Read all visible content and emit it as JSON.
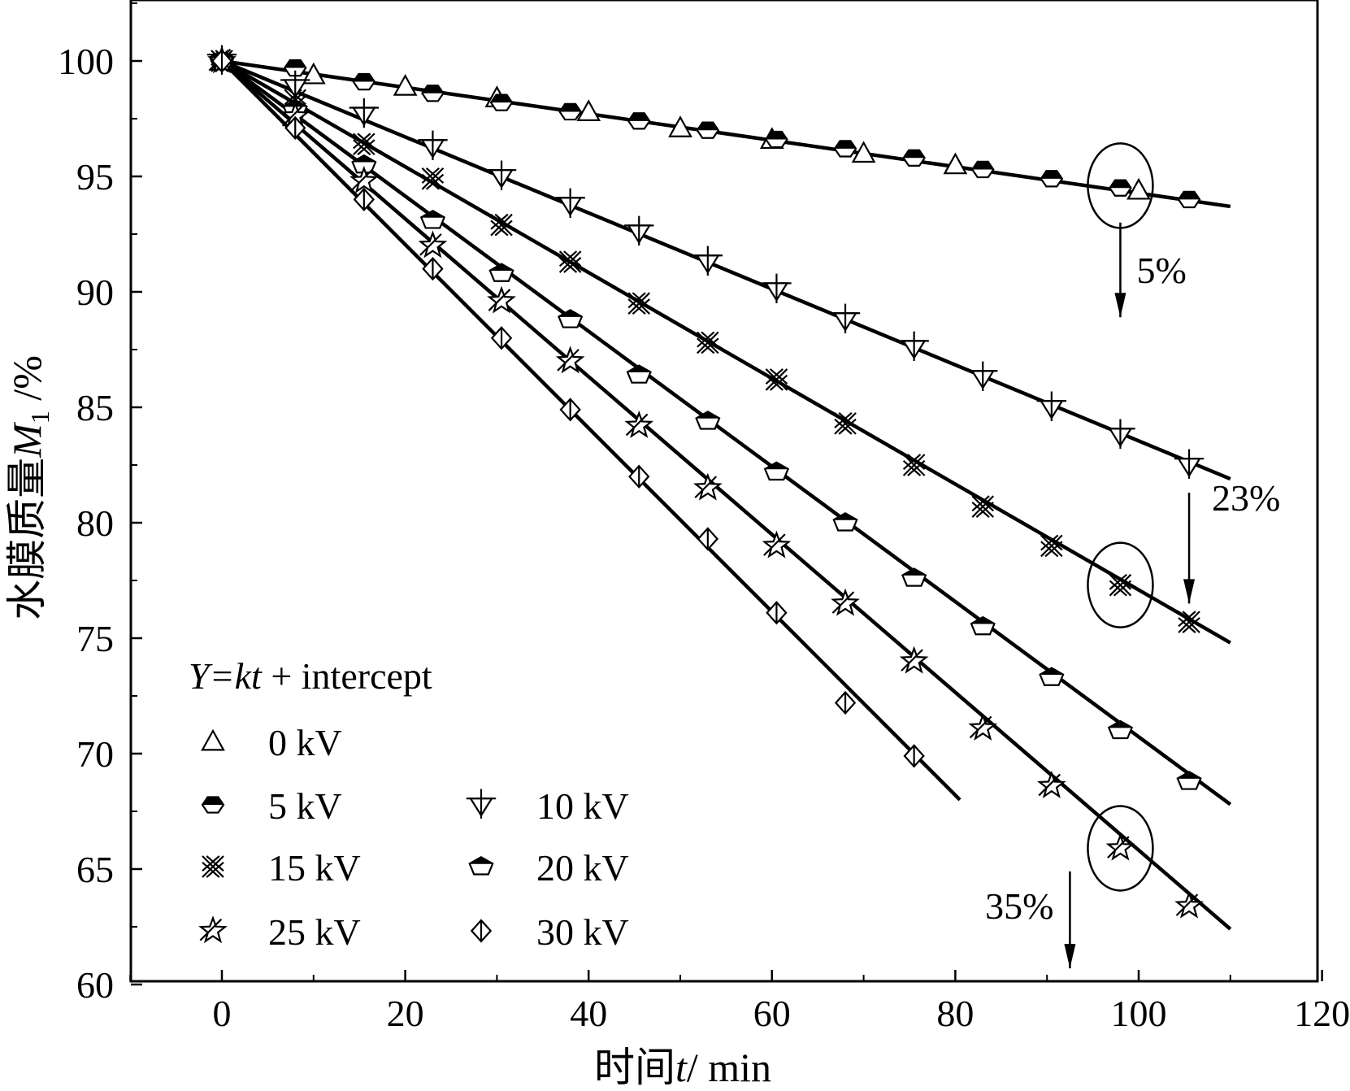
{
  "chart_data": {
    "type": "scatter",
    "xlabel_prefix": "时间",
    "xlabel_var": "t",
    "xlabel_suffix": "/ min",
    "ylabel_prefix": "水膜质量",
    "ylabel_var": "M",
    "ylabel_sub": "1",
    "ylabel_suffix": " /%",
    "xlim": [
      -10,
      120
    ],
    "ylim": [
      60,
      102.5
    ],
    "xticks": [
      0,
      20,
      40,
      60,
      80,
      100,
      120
    ],
    "yticks": [
      60,
      65,
      70,
      75,
      80,
      85,
      90,
      95,
      100
    ],
    "grid": false,
    "legend_position": "bottom-left",
    "fit_equation_italic": "Y=kt",
    "fit_equation_rest": " + intercept",
    "series": [
      {
        "name": "0 kV",
        "marker": "triangle",
        "x": [
          0,
          10,
          20,
          30,
          40,
          50,
          60,
          70,
          80,
          100
        ],
        "y": [
          100,
          99.4,
          98.9,
          98.4,
          97.8,
          97.1,
          96.6,
          96.0,
          95.5,
          94.4
        ],
        "fit_end": [
          110,
          93.7
        ]
      },
      {
        "name": "5 kV",
        "marker": "hexagon-half",
        "x": [
          0,
          8,
          15.5,
          23,
          30.5,
          38,
          45.5,
          53,
          60.5,
          68,
          75.5,
          83,
          90.5,
          98,
          105.5
        ],
        "y": [
          100,
          99.7,
          99.1,
          98.6,
          98.2,
          97.8,
          97.4,
          97.0,
          96.6,
          96.2,
          95.8,
          95.3,
          94.9,
          94.5,
          94.0
        ],
        "fit_end": [
          110,
          93.7
        ]
      },
      {
        "name": "10 kV",
        "marker": "down-triangle-cross",
        "x": [
          0,
          8,
          15.5,
          23,
          30.5,
          38,
          45.5,
          53,
          60.5,
          68,
          75.5,
          83,
          90.5,
          98,
          105.5
        ],
        "y": [
          100,
          98.9,
          97.7,
          96.3,
          95.0,
          93.8,
          92.6,
          91.3,
          90.1,
          88.8,
          87.6,
          86.3,
          85.0,
          83.8,
          82.5
        ],
        "fit_end": [
          110,
          81.9
        ]
      },
      {
        "name": "15 kV",
        "marker": "double-cross",
        "x": [
          0,
          8,
          15.5,
          23,
          30.5,
          38,
          45.5,
          53,
          60.5,
          68,
          75.5,
          83,
          90.5,
          98,
          105.5
        ],
        "y": [
          100,
          98.3,
          96.4,
          94.9,
          92.9,
          91.3,
          89.5,
          87.8,
          86.2,
          84.3,
          82.5,
          80.7,
          79.0,
          77.3,
          75.7
        ],
        "fit_end": [
          110,
          74.8
        ]
      },
      {
        "name": "20 kV",
        "marker": "pentagon-half",
        "x": [
          0,
          8,
          15.5,
          23,
          30.5,
          38,
          45.5,
          53,
          60.5,
          68,
          75.5,
          83,
          90.5,
          98,
          105.5
        ],
        "y": [
          100,
          97.9,
          95.5,
          93.1,
          90.8,
          88.8,
          86.4,
          84.4,
          82.2,
          80.0,
          77.6,
          75.5,
          73.3,
          71.0,
          68.8
        ],
        "fit_end": [
          110,
          67.8
        ]
      },
      {
        "name": "25 kV",
        "marker": "star-cross",
        "x": [
          0,
          8,
          15.5,
          23,
          30.5,
          38,
          45.5,
          53,
          60.5,
          68,
          75.5,
          83,
          90.5,
          98,
          105.5
        ],
        "y": [
          100,
          97.6,
          94.8,
          92.0,
          89.6,
          87.0,
          84.2,
          81.5,
          79.0,
          76.5,
          74.0,
          71.1,
          68.6,
          65.9,
          63.4
        ],
        "fit_end": [
          110,
          62.4
        ]
      },
      {
        "name": "30 kV",
        "marker": "diamond-line",
        "x": [
          0,
          8,
          15.5,
          23,
          30.5,
          38,
          45.5,
          53,
          60.5,
          68,
          75.5
        ],
        "y": [
          100,
          97.1,
          94.0,
          91.0,
          88.0,
          84.9,
          82.0,
          79.3,
          76.1,
          72.2,
          69.9
        ],
        "fit_end": [
          80.5,
          68.0
        ]
      }
    ],
    "annotations": [
      {
        "text": "5%",
        "circle_at": [
          98,
          94.6
        ],
        "arrow_x": 98,
        "arrow_from_y": 93.0,
        "arrow_to_y": 88.9
      },
      {
        "text": "23%",
        "circle_at": [
          98,
          77.3
        ],
        "arrow_x": 105.5,
        "arrow_from_y": 81.3,
        "arrow_to_y": 76.5
      },
      {
        "text": "35%",
        "circle_at": [
          98,
          65.9
        ],
        "arrow_x": 92.5,
        "arrow_from_y": 64.9,
        "arrow_to_y": 60.7
      }
    ]
  }
}
